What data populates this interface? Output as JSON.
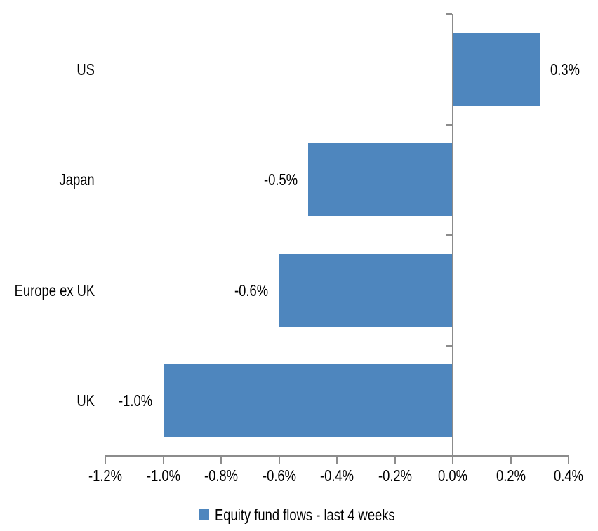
{
  "chart_data": {
    "type": "bar",
    "orientation": "horizontal",
    "title": "",
    "categories": [
      "US",
      "Japan",
      "Europe ex UK",
      "UK"
    ],
    "values": [
      0.3,
      -0.5,
      -0.6,
      -1.0
    ],
    "data_labels": [
      "0.3%",
      "-0.5%",
      "-0.6%",
      "-1.0%"
    ],
    "x_axis": {
      "min": -1.2,
      "max": 0.4,
      "tick_step": 0.2,
      "tick_labels": [
        "-1.2%",
        "-1.0%",
        "-0.8%",
        "-0.6%",
        "-0.4%",
        "-0.2%",
        "0.0%",
        "0.2%",
        "0.4%"
      ],
      "format": "percent"
    },
    "xlabel": "",
    "ylabel": "",
    "grid": false,
    "legend": {
      "position": "bottom",
      "items": [
        {
          "label": "Equity fund flows - last 4 weeks",
          "color": "#4E86BE"
        }
      ]
    },
    "colors": {
      "bar": "#4E86BE",
      "axis": "#8C8C8C",
      "text": "#000000",
      "background": "#FFFFFF"
    }
  }
}
